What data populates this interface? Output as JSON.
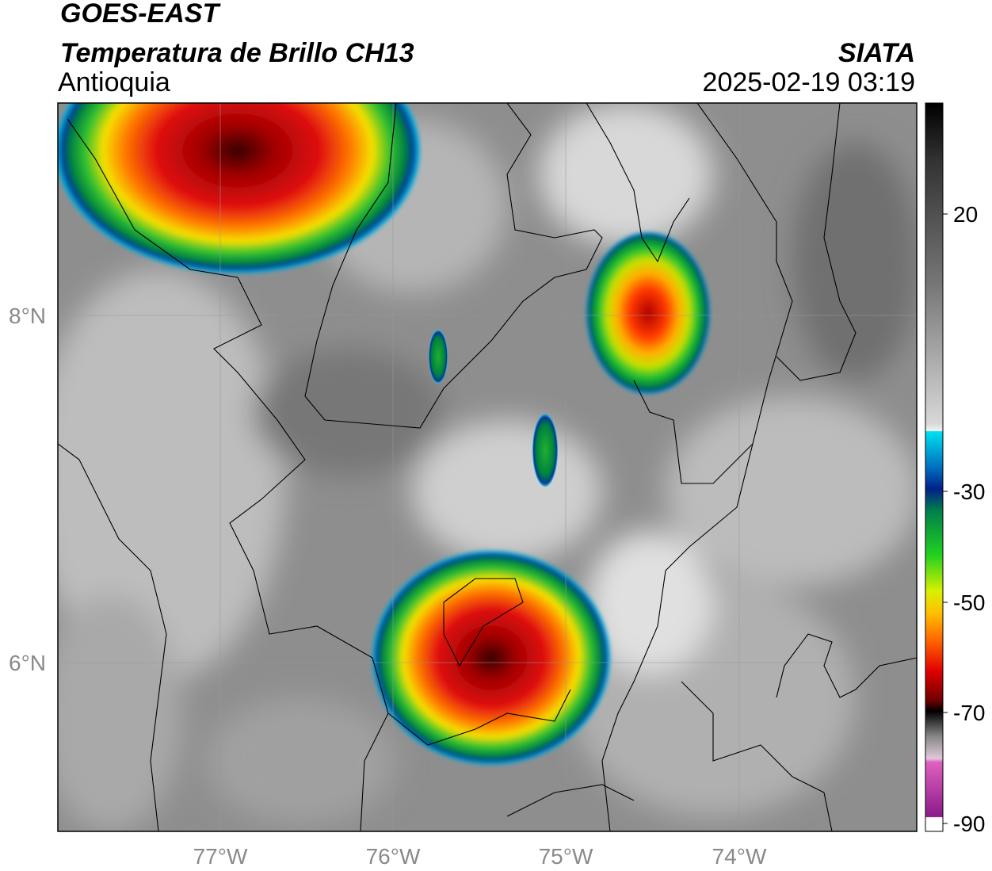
{
  "header": {
    "satellite": "GOES-EAST",
    "product": "Temperatura de Brillo CH13",
    "region": "Antioquia",
    "source": "SIATA",
    "datetime": "2025-02-19 03:19"
  },
  "map": {
    "lat_labels": [
      "8°N",
      "6°N"
    ],
    "lon_labels": [
      "77°W",
      "76°W",
      "75°W",
      "74°W"
    ]
  },
  "colorbar": {
    "ticks": [
      20,
      -30,
      -50,
      -70,
      -90
    ]
  }
}
